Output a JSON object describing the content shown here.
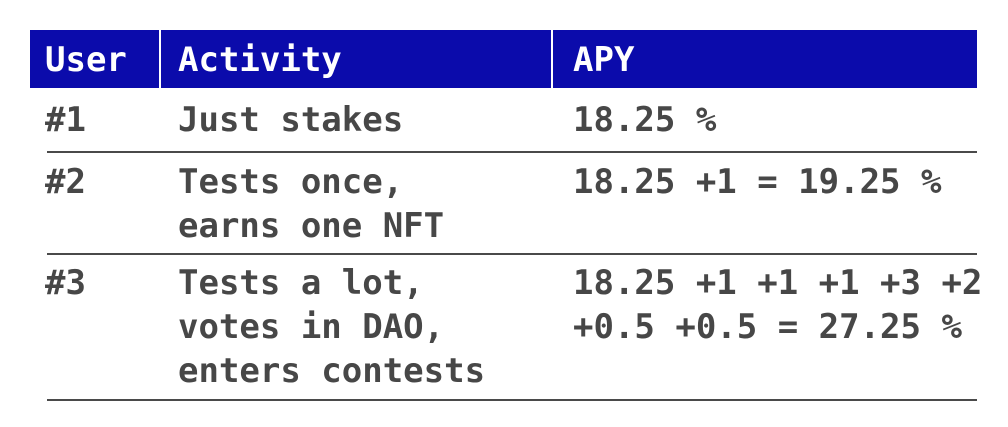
{
  "table": {
    "header": [
      "User",
      "Activity",
      "APY"
    ],
    "rows": [
      [
        "#1",
        [
          "Just stakes"
        ],
        [
          "18.25 %"
        ]
      ],
      [
        "#2",
        [
          "Tests once,",
          "earns one NFT"
        ],
        [
          "18.25 +1 = 19.25 %"
        ]
      ],
      [
        "#3",
        [
          "Tests a lot,",
          "votes in DAO,",
          "enters contests"
        ],
        [
          "18.25 +1 +1 +1 +3 +2",
          "+0.5 +0.5 = 27.25 %"
        ]
      ]
    ]
  }
}
